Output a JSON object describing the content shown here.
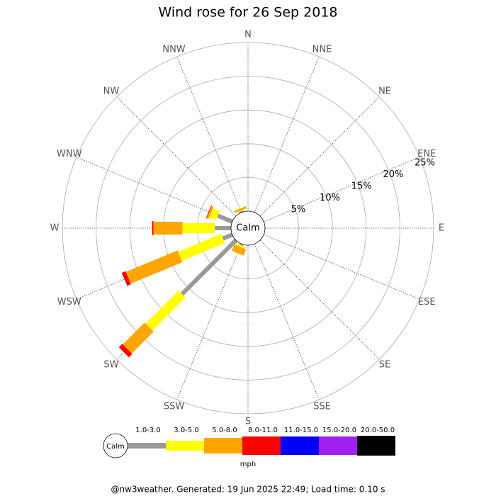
{
  "chart_data": {
    "type": "windrose",
    "title": "Wind rose for 26 Sep 2018",
    "categories": [
      "N",
      "NNE",
      "NE",
      "ENE",
      "E",
      "ESE",
      "SE",
      "SSE",
      "S",
      "SSW",
      "SW",
      "WSW",
      "W",
      "WNW",
      "NW",
      "NNW"
    ],
    "series": [
      {
        "name": "1.0-3.0",
        "color": "#999999",
        "values": [
          0,
          0,
          0,
          0,
          0,
          0,
          0,
          0,
          0,
          0.2,
          11.3,
          1.5,
          2.4,
          2.3,
          0,
          0.2
        ]
      },
      {
        "name": "3.0-5.0",
        "color": "#ffff00",
        "values": [
          0,
          0,
          0,
          0,
          0,
          0,
          0,
          0,
          0,
          0.3,
          6.9,
          6.9,
          4.8,
          1.1,
          0,
          0.1
        ]
      },
      {
        "name": "5.0-8.0",
        "color": "#ffa500",
        "values": [
          0,
          0,
          0,
          0,
          0,
          0,
          0,
          0,
          0,
          1.0,
          4.6,
          8.3,
          4.3,
          0.3,
          0,
          0.3
        ]
      },
      {
        "name": "8.0-11.0",
        "color": "#ff0000",
        "values": [
          0,
          0,
          0,
          0,
          0,
          0,
          0,
          0,
          0,
          0,
          0.7,
          0.6,
          0.2,
          0.1,
          0,
          0
        ]
      },
      {
        "name": "11.0-15.0",
        "color": "#0000ff",
        "values": [
          0,
          0,
          0,
          0,
          0,
          0,
          0,
          0,
          0,
          0,
          0,
          0,
          0,
          0,
          0,
          0
        ]
      },
      {
        "name": "15.0-20.0",
        "color": "#a020f0",
        "values": [
          0,
          0,
          0,
          0,
          0,
          0,
          0,
          0,
          0,
          0,
          0,
          0,
          0,
          0,
          0,
          0
        ]
      },
      {
        "name": "20.0-50.0",
        "color": "#000000",
        "values": [
          0,
          0,
          0,
          0,
          0,
          0,
          0,
          0,
          0,
          0,
          0,
          0,
          0,
          0,
          0,
          0
        ]
      }
    ],
    "rlim": [
      0,
      25
    ],
    "rticks": [
      {
        "value": 5,
        "label": "5%"
      },
      {
        "value": 10,
        "label": "10%"
      },
      {
        "value": 15,
        "label": "15%"
      },
      {
        "value": 20,
        "label": "20%"
      },
      {
        "value": 25,
        "label": "25%"
      }
    ],
    "calm_label": "Calm",
    "unit": "mph",
    "footer": "@nw3weather. Generated: 19 Jun 2025 22:49; Load time: 0.10 s"
  }
}
